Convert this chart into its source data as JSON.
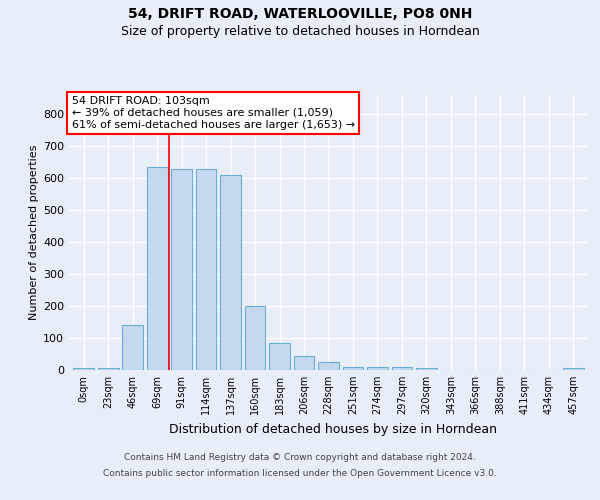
{
  "title1": "54, DRIFT ROAD, WATERLOOVILLE, PO8 0NH",
  "title2": "Size of property relative to detached houses in Horndean",
  "xlabel": "Distribution of detached houses by size in Horndean",
  "ylabel": "Number of detached properties",
  "categories": [
    "0sqm",
    "23sqm",
    "46sqm",
    "69sqm",
    "91sqm",
    "114sqm",
    "137sqm",
    "160sqm",
    "183sqm",
    "206sqm",
    "228sqm",
    "251sqm",
    "274sqm",
    "297sqm",
    "320sqm",
    "343sqm",
    "366sqm",
    "388sqm",
    "411sqm",
    "434sqm",
    "457sqm"
  ],
  "values": [
    5,
    5,
    140,
    635,
    630,
    630,
    610,
    200,
    85,
    45,
    25,
    10,
    10,
    8,
    6,
    0,
    0,
    0,
    0,
    0,
    5
  ],
  "bar_color": "#c5d8ef",
  "bar_edge_color": "#6aaed6",
  "ylim": [
    0,
    860
  ],
  "yticks": [
    0,
    100,
    200,
    300,
    400,
    500,
    600,
    700,
    800
  ],
  "annotation_line1": "54 DRIFT ROAD: 103sqm",
  "annotation_line2": "← 39% of detached houses are smaller (1,059)",
  "annotation_line3": "61% of semi-detached houses are larger (1,653) →",
  "vline_x": 3.5,
  "footer1": "Contains HM Land Registry data © Crown copyright and database right 2024.",
  "footer2": "Contains public sector information licensed under the Open Government Licence v3.0.",
  "background_color": "#e8eef8",
  "plot_bg_color": "#e8eef8",
  "grid_color": "#ffffff",
  "title1_fontsize": 10,
  "title2_fontsize": 9,
  "ylabel_fontsize": 8,
  "xlabel_fontsize": 9,
  "tick_fontsize": 8,
  "xtick_fontsize": 7,
  "footer_fontsize": 6.5,
  "ann_fontsize": 8
}
